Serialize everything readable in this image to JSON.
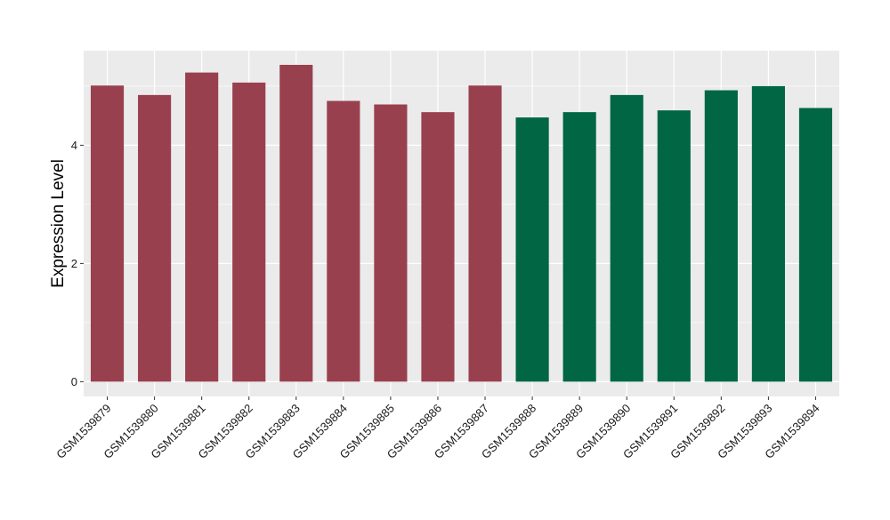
{
  "chart_data": {
    "type": "bar",
    "title": "",
    "xlabel": "",
    "ylabel": "Expression Level",
    "ylim": [
      -0.25,
      5.6
    ],
    "yticks": [
      0,
      2,
      4
    ],
    "grid": true,
    "legend": "none",
    "categories": [
      "GSM1539879",
      "GSM1539880",
      "GSM1539881",
      "GSM1539882",
      "GSM1539883",
      "GSM1539884",
      "GSM1539885",
      "GSM1539886",
      "GSM1539887",
      "GSM1539888",
      "GSM1539889",
      "GSM1539890",
      "GSM1539891",
      "GSM1539892",
      "GSM1539893",
      "GSM1539894"
    ],
    "values": [
      5.01,
      4.85,
      5.23,
      5.06,
      5.36,
      4.75,
      4.69,
      4.56,
      5.01,
      4.47,
      4.56,
      4.85,
      4.59,
      4.93,
      5.0,
      4.63
    ],
    "colors": [
      "#99404f",
      "#99404f",
      "#99404f",
      "#99404f",
      "#99404f",
      "#99404f",
      "#99404f",
      "#99404f",
      "#99404f",
      "#006643",
      "#006643",
      "#006643",
      "#006643",
      "#006643",
      "#006643",
      "#006643"
    ],
    "panel_background": "#ebebeb",
    "grid_color": "#ffffff"
  }
}
